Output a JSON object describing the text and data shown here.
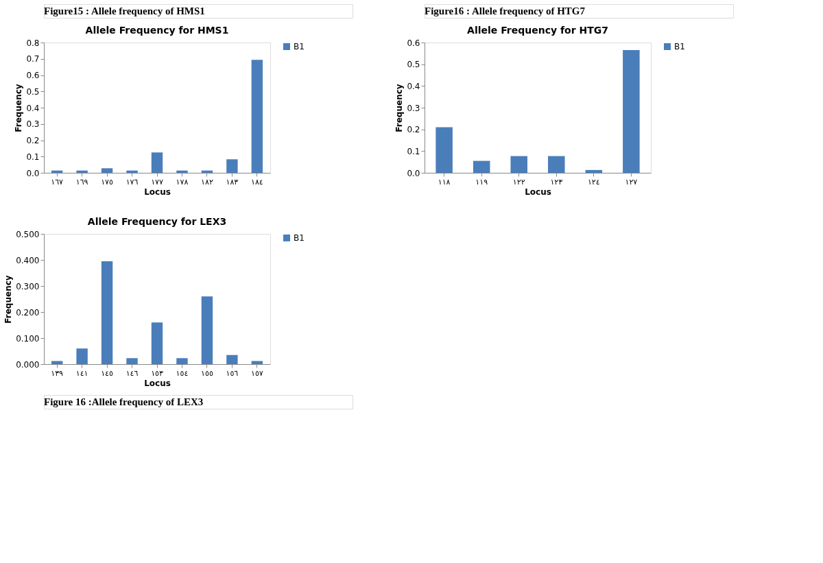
{
  "chart_data": [
    {
      "type": "bar",
      "title": "Allele Frequency for HMS1",
      "xlabel": "Locus",
      "ylabel": "Frequency",
      "annotations": [
        "Figure15 :  Allele frequency of HMS1"
      ],
      "categories": [
        "١٦٧",
        "١٦٩",
        "١٧٥",
        "١٧٦",
        "١٧٧",
        "١٧٨",
        "١٨٢",
        "١٨٣",
        "١٨٤"
      ],
      "series": [
        {
          "name": "B1",
          "color": "#4a7ebb",
          "values": [
            0.014,
            0.014,
            0.028,
            0.014,
            0.125,
            0.014,
            0.014,
            0.083,
            0.694
          ]
        }
      ],
      "ylim": [
        0,
        0.8
      ],
      "yticks": [
        {
          "value": 0,
          "label": "0.0"
        },
        0.1,
        0.2,
        0.3,
        0.4,
        0.5,
        0.6,
        0.7,
        0.8
      ],
      "grid": false,
      "legend": "right"
    },
    {
      "type": "bar",
      "title": "Allele Frequency for HTG7",
      "xlabel": "Locus",
      "ylabel": "Frequency",
      "annotations": [
        "Figure16 :  Allele frequency of HTG7"
      ],
      "categories": [
        "١١٨",
        "١١٩",
        "١٢٢",
        "١٢٣",
        "١٢٤",
        "١٢٧"
      ],
      "series": [
        {
          "name": "B1",
          "color": "#4a7ebb",
          "values": [
            0.21,
            0.055,
            0.077,
            0.077,
            0.013,
            0.565
          ]
        }
      ],
      "ylim": [
        0,
        0.6
      ],
      "yticks": [
        {
          "value": 0,
          "label": "0.0"
        },
        0.1,
        0.2,
        0.3,
        0.4,
        0.5,
        0.6
      ],
      "grid": false,
      "legend": "right"
    },
    {
      "type": "bar",
      "title": "Allele Frequency for LEX3",
      "xlabel": "Locus",
      "ylabel": "Frequency",
      "annotations": [
        "Figure 16 :Allele frequency of LEX3"
      ],
      "categories": [
        "١٣٩",
        "١٤١",
        "١٤٥",
        "١٤٦",
        "١٥٣",
        "١٥٤",
        "١٥٥",
        "١٥٦",
        "١٥٧"
      ],
      "series": [
        {
          "name": "B1",
          "color": "#4a7ebb",
          "values": [
            0.012,
            0.06,
            0.395,
            0.023,
            0.16,
            0.023,
            0.26,
            0.035,
            0.012
          ]
        }
      ],
      "ylim": [
        0,
        0.5
      ],
      "yticks": [
        {
          "value": 0,
          "label": "0.000"
        },
        {
          "value": 0.1,
          "label": "0.100"
        },
        {
          "value": 0.2,
          "label": "0.200"
        },
        {
          "value": 0.3,
          "label": "0.300"
        },
        {
          "value": 0.4,
          "label": "0.400"
        },
        {
          "value": 0.5,
          "label": "0.500"
        }
      ],
      "grid": false,
      "legend": "right"
    }
  ]
}
